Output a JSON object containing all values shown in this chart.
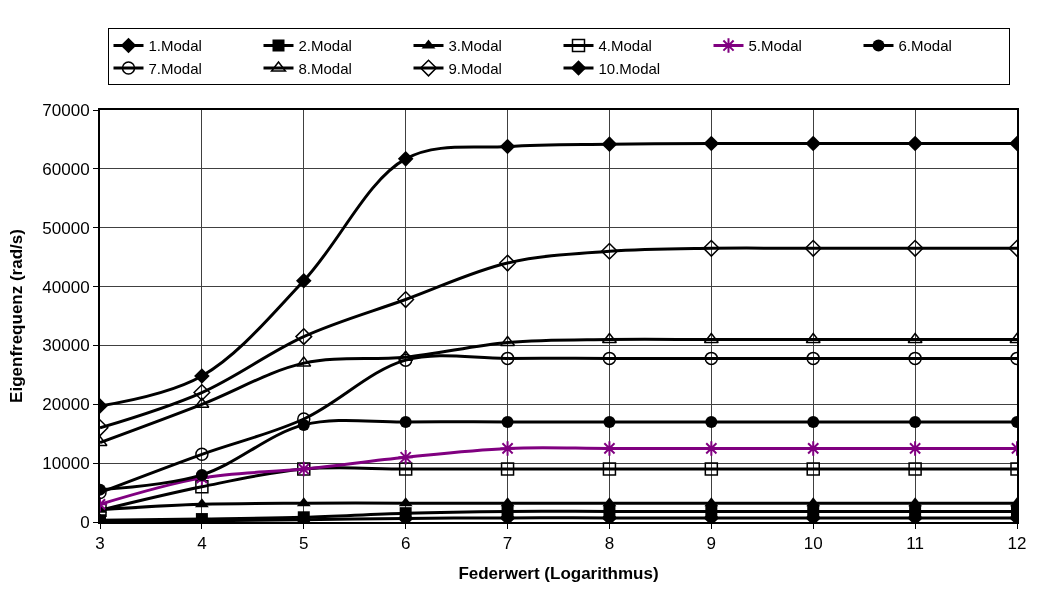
{
  "chart_data": {
    "type": "line",
    "xlabel": "Federwert (Logarithmus)",
    "ylabel": "Eigenfrequenz (rad/s)",
    "x": [
      3,
      4,
      5,
      6,
      7,
      8,
      9,
      10,
      11,
      12
    ],
    "xlim": [
      3,
      12
    ],
    "xticks": [
      3,
      4,
      5,
      6,
      7,
      8,
      9,
      10,
      11,
      12
    ],
    "ylim": [
      0,
      70000
    ],
    "yticks": [
      0,
      10000,
      20000,
      30000,
      40000,
      50000,
      60000,
      70000
    ],
    "grid": true,
    "legend": "top",
    "line_style": "solid",
    "series": [
      {
        "name": "1.Modal",
        "color": "#000000",
        "marker": "diamond",
        "values": [
          100,
          200,
          400,
          600,
          700,
          700,
          700,
          700,
          700,
          700
        ]
      },
      {
        "name": "2.Modal",
        "color": "#000000",
        "marker": "square",
        "values": [
          300,
          500,
          800,
          1500,
          1800,
          1800,
          1800,
          1800,
          1800,
          1800
        ]
      },
      {
        "name": "3.Modal",
        "color": "#000000",
        "marker": "triangle",
        "values": [
          2100,
          3000,
          3200,
          3200,
          3200,
          3200,
          3200,
          3200,
          3200,
          3200
        ]
      },
      {
        "name": "4.Modal",
        "color": "#000000",
        "marker": "square",
        "values": [
          2000,
          6000,
          9000,
          9000,
          9000,
          9000,
          9000,
          9000,
          9000,
          9000
        ]
      },
      {
        "name": "5.Modal",
        "color": "#800080",
        "marker": "cross",
        "values": [
          3000,
          7500,
          9000,
          11000,
          12500,
          12500,
          12500,
          12500,
          12500,
          12500
        ]
      },
      {
        "name": "6.Modal",
        "color": "#000000",
        "marker": "circle",
        "values": [
          5500,
          8000,
          16500,
          17000,
          17000,
          17000,
          17000,
          17000,
          17000,
          17000
        ]
      },
      {
        "name": "7.Modal",
        "color": "#000000",
        "marker": "circle",
        "values": [
          5000,
          11500,
          17500,
          27500,
          27800,
          27800,
          27800,
          27800,
          27800,
          27800
        ]
      },
      {
        "name": "8.Modal",
        "color": "#000000",
        "marker": "triangle",
        "values": [
          13500,
          20000,
          27000,
          28000,
          30500,
          31000,
          31000,
          31000,
          31000,
          31000
        ]
      },
      {
        "name": "9.Modal",
        "color": "#000000",
        "marker": "diamond",
        "values": [
          16000,
          22000,
          31500,
          37800,
          44000,
          46000,
          46500,
          46500,
          46500,
          46500
        ]
      },
      {
        "name": "10.Modal",
        "color": "#000000",
        "marker": "diamond",
        "values": [
          19700,
          24800,
          41000,
          61700,
          63800,
          64200,
          64300,
          64300,
          64300,
          64300
        ]
      }
    ]
  }
}
